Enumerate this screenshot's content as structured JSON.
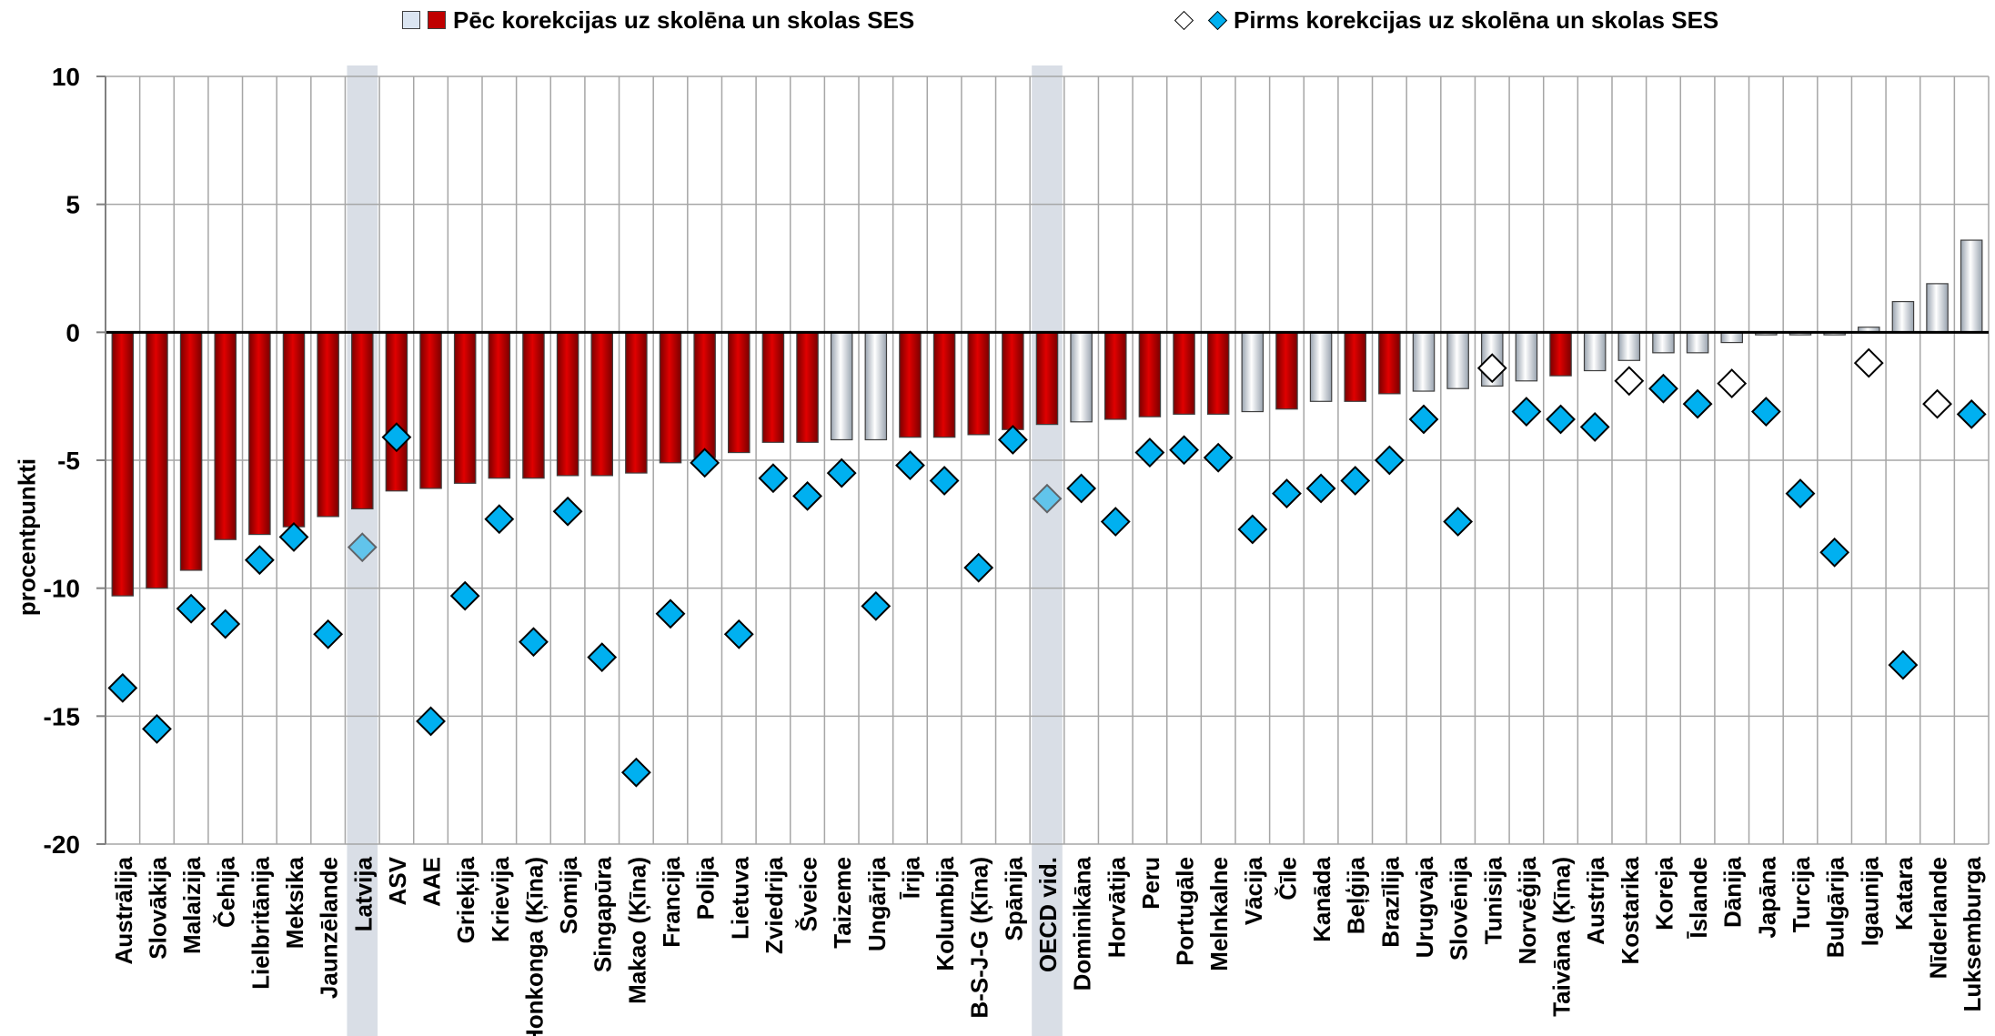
{
  "legend": {
    "after_label": "Pēc korekcijas uz skolēna un skolas SES",
    "before_label": "Pirms korekcijas uz skolēna un skolas SES"
  },
  "colors": {
    "significant_bar": "#c00000",
    "nonsignificant_bar": "#dbe5f1",
    "significant_marker": "#00b0f0",
    "nonsignificant_marker": "#ffffff",
    "highlight_band": "#d9dee6"
  },
  "chart_data": {
    "type": "bar",
    "ylabel": "procentpunkti",
    "ylim": [
      -20,
      10
    ],
    "yticks": [
      10,
      5,
      0,
      -5,
      -10,
      -15,
      -20
    ],
    "grid": true,
    "highlight": [
      "Latvija",
      "OECD vid."
    ],
    "categories": [
      "Austrālija",
      "Slovākija",
      "Malaizija",
      "Čehija",
      "Lielbritānija",
      "Meksika",
      "Jaunzēlande",
      "Latvija",
      "ASV",
      "AAE",
      "Grieķija",
      "Krievija",
      "Honkonga (Ķīna)",
      "Somija",
      "Singapūra",
      "Makao (Ķīna)",
      "Francija",
      "Polija",
      "Lietuva",
      "Zviedrija",
      "Šveice",
      "Taizeme",
      "Ungārija",
      "Īrija",
      "Kolumbija",
      "B-S-J-G (Ķīna)",
      "Spānija",
      "OECD vid.",
      "Dominikāna",
      "Horvātija",
      "Peru",
      "Portugāle",
      "Melnkalne",
      "Vācija",
      "Čīle",
      "Kanāda",
      "Beļģija",
      "Brazīlija",
      "Urugvaja",
      "Slovēnija",
      "Tunisija",
      "Norvēģija",
      "Taivāna (Ķīna)",
      "Austrija",
      "Kostarika",
      "Koreja",
      "Īslande",
      "Dānija",
      "Japāna",
      "Turcija",
      "Bulgārija",
      "Igaunija",
      "Katara",
      "Nīderlande",
      "Luksemburga"
    ],
    "series": [
      {
        "name": "Pēc korekcijas uz skolēna un skolas SES",
        "values": [
          -10.3,
          -10.0,
          -9.3,
          -8.1,
          -7.9,
          -7.6,
          -7.2,
          -6.9,
          -6.2,
          -6.1,
          -5.9,
          -5.7,
          -5.7,
          -5.6,
          -5.6,
          -5.5,
          -5.1,
          -4.9,
          -4.7,
          -4.3,
          -4.3,
          -4.2,
          -4.2,
          -4.1,
          -4.1,
          -4.0,
          -3.8,
          -3.6,
          -3.5,
          -3.4,
          -3.3,
          -3.2,
          -3.2,
          -3.1,
          -3.0,
          -2.7,
          -2.7,
          -2.4,
          -2.3,
          -2.2,
          -2.1,
          -1.9,
          -1.7,
          -1.5,
          -1.1,
          -0.8,
          -0.8,
          -0.4,
          -0.1,
          -0.1,
          -0.1,
          0.2,
          1.2,
          1.9,
          3.6
        ],
        "significant": [
          true,
          true,
          true,
          true,
          true,
          true,
          true,
          true,
          true,
          true,
          true,
          true,
          true,
          true,
          true,
          true,
          true,
          true,
          true,
          true,
          true,
          false,
          false,
          true,
          true,
          true,
          true,
          true,
          false,
          true,
          true,
          true,
          true,
          false,
          true,
          false,
          true,
          true,
          false,
          false,
          false,
          false,
          true,
          false,
          false,
          false,
          false,
          false,
          false,
          false,
          false,
          false,
          false,
          false,
          false
        ]
      },
      {
        "name": "Pirms korekcijas uz skolēna un skolas SES",
        "values": [
          -13.9,
          -15.5,
          -10.8,
          -11.4,
          -8.9,
          -8.0,
          -11.8,
          -8.4,
          -4.1,
          -15.2,
          -10.3,
          -7.3,
          -12.1,
          -7.0,
          -12.7,
          -17.2,
          -11.0,
          -5.1,
          -11.8,
          -5.7,
          -6.4,
          -5.5,
          -10.7,
          -5.2,
          -5.8,
          -9.2,
          -4.2,
          -6.5,
          -6.1,
          -7.4,
          -4.7,
          -4.6,
          -4.9,
          -7.7,
          -6.3,
          -6.1,
          -5.8,
          -5.0,
          -3.4,
          -7.4,
          -1.4,
          -3.1,
          -3.4,
          -3.7,
          -1.9,
          -2.2,
          -2.8,
          -2.0,
          -3.1,
          -6.3,
          -8.6,
          -1.2,
          -13.0,
          -2.8,
          -3.2
        ],
        "significant": [
          true,
          true,
          true,
          true,
          true,
          true,
          true,
          true,
          true,
          true,
          true,
          true,
          true,
          true,
          true,
          true,
          true,
          true,
          true,
          true,
          true,
          true,
          true,
          true,
          true,
          true,
          true,
          true,
          true,
          true,
          true,
          true,
          true,
          true,
          true,
          true,
          true,
          true,
          true,
          true,
          false,
          true,
          true,
          true,
          false,
          true,
          true,
          false,
          true,
          true,
          true,
          false,
          true,
          false,
          true
        ]
      }
    ]
  }
}
